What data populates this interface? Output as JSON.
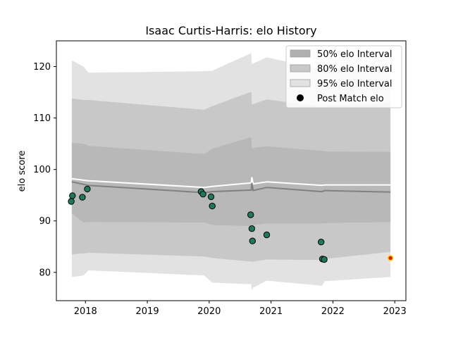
{
  "chart_data": {
    "type": "scatter",
    "title": "Isaac Curtis-Harris: elo History",
    "xlabel": "",
    "ylabel": "elo score",
    "xlim": [
      2017.53,
      2023.18
    ],
    "ylim": [
      74.5,
      125.0
    ],
    "x_ticks": [
      2018,
      2019,
      2020,
      2021,
      2022,
      2023
    ],
    "x_tick_labels": [
      "2018",
      "2019",
      "2020",
      "2021",
      "2022",
      "2023"
    ],
    "y_ticks": [
      80,
      90,
      100,
      110,
      120
    ],
    "y_tick_labels": [
      "80",
      "90",
      "100",
      "110",
      "120"
    ],
    "grid": false,
    "legend_position": "top-right",
    "legend": [
      {
        "label": "50% elo Interval",
        "kind": "band",
        "color": "#b0b0b0"
      },
      {
        "label": "80% elo Interval",
        "kind": "band",
        "color": "#c8c8c8"
      },
      {
        "label": "95% elo Interval",
        "kind": "band",
        "color": "#e2e2e2"
      },
      {
        "label": "Post Match elo",
        "kind": "marker",
        "color": "#000000"
      }
    ],
    "bands": {
      "x": [
        2017.78,
        2017.97,
        2018.05,
        2019.92,
        2020.05,
        2020.68,
        2020.69,
        2020.71,
        2020.93,
        2021.82,
        2021.87,
        2022.93
      ],
      "band95_upper": [
        121.2,
        120.0,
        118.8,
        119.1,
        119.2,
        122.6,
        120.5,
        120.6,
        121.8,
        119.5,
        119.6,
        120.4
      ],
      "band80_upper": [
        113.8,
        113.5,
        113.5,
        111.6,
        112.3,
        115.1,
        112.6,
        112.7,
        113.6,
        112.2,
        112.3,
        112.9
      ],
      "band50_upper": [
        105.2,
        105.0,
        104.6,
        103.0,
        104.0,
        106.3,
        104.1,
        104.2,
        104.5,
        103.6,
        103.5,
        103.4
      ],
      "band50_lower": [
        91.5,
        89.7,
        89.8,
        89.7,
        89.2,
        89.0,
        89.2,
        89.2,
        89.5,
        89.5,
        89.6,
        89.8
      ],
      "band80_lower": [
        83.5,
        83.7,
        83.8,
        83.1,
        82.8,
        82.1,
        82.0,
        82.1,
        82.5,
        82.4,
        82.6,
        84.0
      ],
      "band95_lower": [
        79.1,
        79.4,
        80.4,
        79.4,
        78.0,
        77.7,
        76.6,
        77.0,
        78.4,
        77.4,
        78.3,
        79.1
      ]
    },
    "series": [
      {
        "kind": "line",
        "color": "#ffffff",
        "x": [
          2017.78,
          2018.05,
          2019.92,
          2020.05,
          2020.68,
          2020.69,
          2020.71,
          2020.93,
          2021.82,
          2021.87,
          2022.93
        ],
        "y": [
          98.2,
          97.8,
          96.5,
          96.7,
          97.4,
          98.5,
          97.2,
          97.6,
          96.9,
          97.0,
          97.0
        ]
      },
      {
        "kind": "line",
        "color": "#808080",
        "x": [
          2017.78,
          2018.05,
          2019.92,
          2020.05,
          2020.68,
          2020.69,
          2020.71,
          2020.93,
          2021.82,
          2021.87,
          2022.93
        ],
        "y": [
          97.6,
          96.9,
          95.5,
          95.7,
          96.0,
          97.4,
          95.9,
          96.5,
          95.7,
          95.9,
          95.6
        ]
      },
      {
        "kind": "scatter",
        "color": "#1a7a5a",
        "x": [
          2017.77,
          2017.79,
          2017.95,
          2018.03,
          2019.87,
          2019.9,
          2020.03,
          2020.05,
          2020.67,
          2020.69,
          2020.7,
          2020.93,
          2021.81,
          2021.83,
          2021.86
        ],
        "y": [
          93.8,
          94.9,
          94.6,
          96.2,
          95.7,
          95.2,
          94.7,
          92.9,
          91.2,
          88.5,
          86.1,
          87.3,
          85.9,
          82.6,
          82.5
        ]
      },
      {
        "kind": "scatter",
        "color": "#e31a1c",
        "edge_color": "#ffd700",
        "x": [
          2022.93
        ],
        "y": [
          82.8
        ]
      }
    ]
  }
}
